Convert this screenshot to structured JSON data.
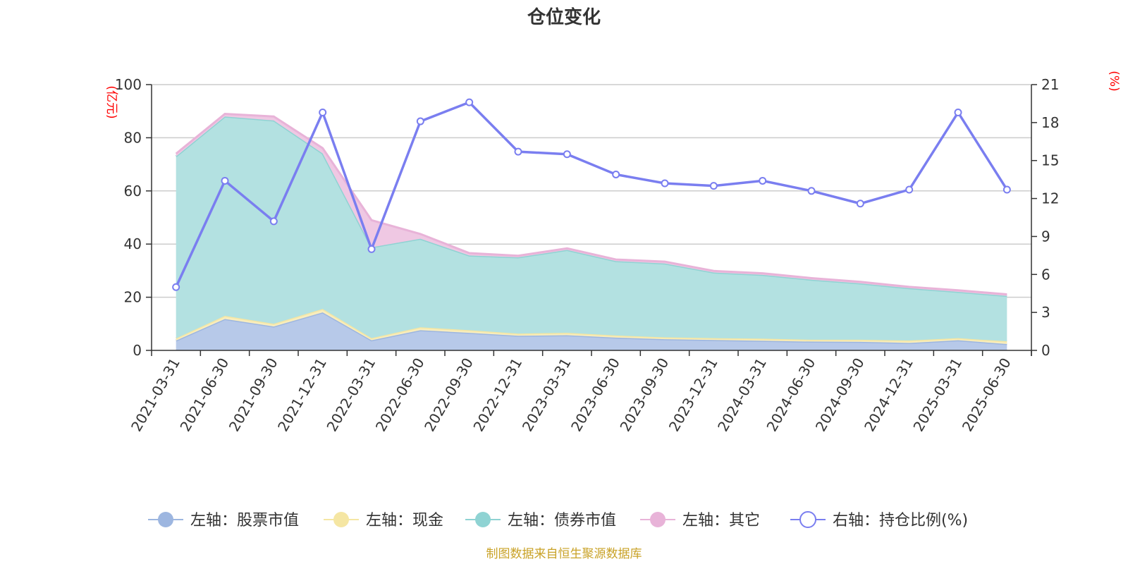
{
  "chart_data": {
    "type": "area",
    "title": "仓位变化",
    "left_unit": "(亿元)",
    "right_unit": "(%)",
    "left_ylim": [
      0,
      100
    ],
    "left_ticks": [
      0,
      20,
      40,
      60,
      80,
      100
    ],
    "right_ylim": [
      0,
      21
    ],
    "right_ticks": [
      0,
      3,
      6,
      9,
      12,
      15,
      18,
      21
    ],
    "grid": true,
    "legend_position": "bottom",
    "categories": [
      "2021-03-31",
      "2021-06-30",
      "2021-09-30",
      "2021-12-31",
      "2022-03-31",
      "2022-06-30",
      "2022-09-30",
      "2022-12-31",
      "2023-03-31",
      "2023-06-30",
      "2023-09-30",
      "2023-12-31",
      "2024-03-31",
      "2024-06-30",
      "2024-09-30",
      "2024-12-31",
      "2025-03-31",
      "2025-06-30"
    ],
    "series": [
      {
        "name": "左轴：股票市值",
        "axis": "left",
        "stack": true,
        "color": "#9db6e0",
        "fill": "#b7c9e9",
        "values": [
          3.7,
          11.8,
          9.0,
          14.3,
          3.8,
          7.6,
          6.6,
          5.5,
          5.7,
          4.8,
          4.2,
          3.9,
          3.6,
          3.3,
          3.2,
          2.8,
          3.8,
          2.4
        ]
      },
      {
        "name": "左轴：现金",
        "axis": "left",
        "stack": true,
        "color": "#f5e6a3",
        "fill": "#f8edbd",
        "values": [
          0.8,
          1.2,
          1.0,
          1.3,
          0.8,
          1.1,
          1.0,
          0.8,
          0.9,
          0.8,
          0.7,
          0.7,
          0.8,
          0.7,
          0.8,
          0.9,
          0.8,
          1.0
        ]
      },
      {
        "name": "左轴：债券市值",
        "axis": "left",
        "stack": true,
        "color": "#8fd3d3",
        "fill": "#b3e1e1",
        "values": [
          68.5,
          75.0,
          76.5,
          58.5,
          34.2,
          33.3,
          28.1,
          28.7,
          31.2,
          28.0,
          27.8,
          24.7,
          24.0,
          22.6,
          21.2,
          19.7,
          17.4,
          17.1
        ]
      },
      {
        "name": "左轴：其它",
        "axis": "left",
        "stack": true,
        "color": "#e8b3d8",
        "fill": "#efc8e3",
        "values": [
          1.0,
          1.0,
          1.5,
          2.0,
          10.2,
          1.8,
          0.9,
          0.6,
          0.6,
          0.6,
          0.7,
          0.6,
          0.6,
          0.6,
          0.6,
          0.5,
          0.6,
          0.6
        ]
      },
      {
        "name": "右轴：持仓比例(%)",
        "axis": "right",
        "stack": false,
        "color": "#7a7ef0",
        "fill": "none",
        "values": [
          5.0,
          13.4,
          10.2,
          18.8,
          8.0,
          18.1,
          19.6,
          15.7,
          15.5,
          13.9,
          13.2,
          13.0,
          13.4,
          12.6,
          11.6,
          12.7,
          18.8,
          12.7
        ]
      }
    ],
    "source": "制图数据来自恒生聚源数据库"
  }
}
